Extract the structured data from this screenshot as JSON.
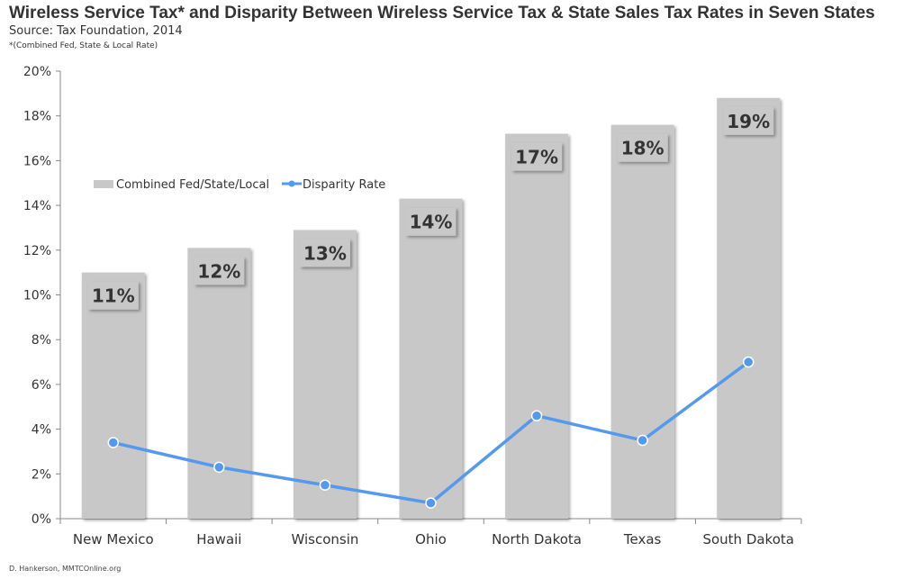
{
  "title": "Wireless Service Tax* and Disparity Between Wireless Service Tax & State Sales Tax Rates in Seven States",
  "subtitle": "Source: Tax Foundation, 2014",
  "note": "*(Combined Fed, State & Local Rate)",
  "footer": "D. Hankerson, MMTCOnline.org",
  "chart_data": {
    "type": "bar+line",
    "title": "Wireless Service Tax* and Disparity Between Wireless Service Tax & State Sales Tax Rates in Seven States",
    "categories": [
      "New Mexico",
      "Hawaii",
      "Wisconsin",
      "Ohio",
      "North Dakota",
      "Texas",
      "South Dakota"
    ],
    "series": [
      {
        "name": "Combined Fed/State/Local",
        "type": "bar",
        "color": "#c8c8c8",
        "values": [
          11.0,
          12.1,
          12.9,
          14.3,
          17.2,
          17.6,
          18.8
        ],
        "labels": [
          "11%",
          "12%",
          "13%",
          "14%",
          "17%",
          "18%",
          "19%"
        ]
      },
      {
        "name": "Disparity Rate",
        "type": "line",
        "color": "#5599ee",
        "values": [
          3.4,
          2.3,
          1.5,
          0.7,
          4.6,
          3.5,
          7.0
        ]
      }
    ],
    "ylim": [
      0,
      20
    ],
    "yticks": [
      "0%",
      "2%",
      "4%",
      "6%",
      "8%",
      "10%",
      "12%",
      "14%",
      "16%",
      "18%",
      "20%"
    ],
    "grid": false,
    "legend": "upper-left inside"
  }
}
